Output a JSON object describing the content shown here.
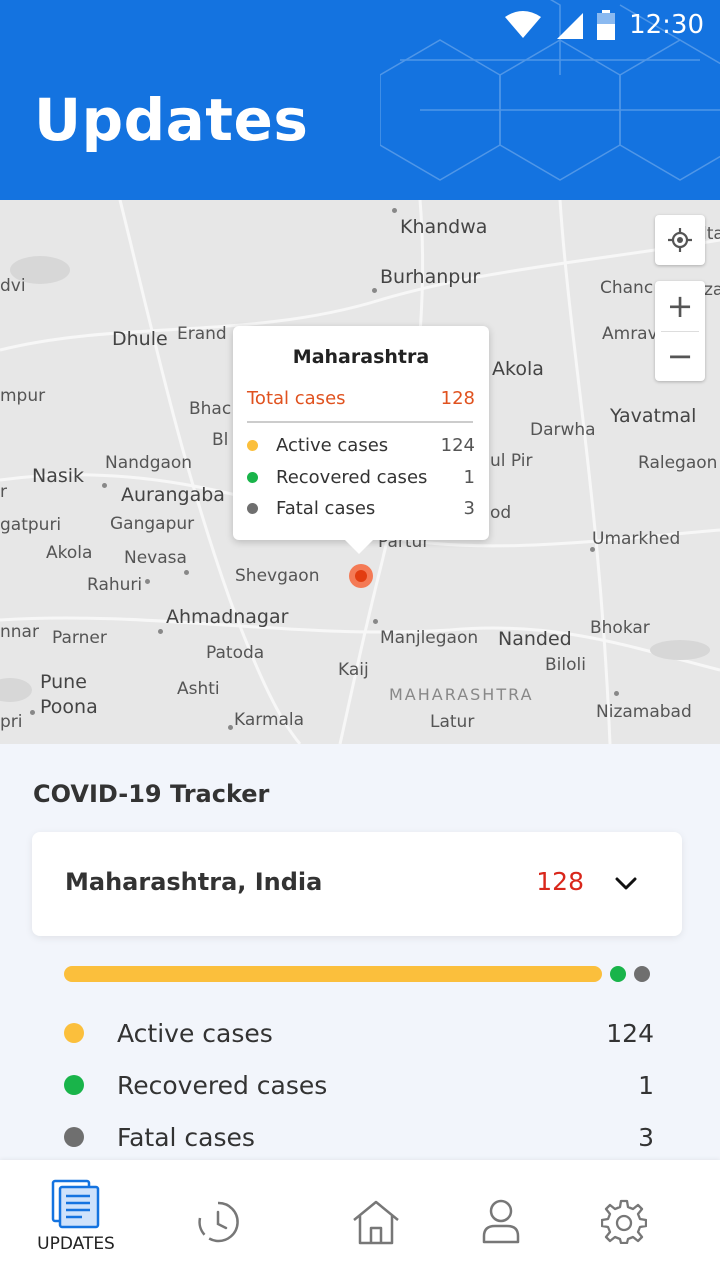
{
  "status_bar": {
    "time": "12:30",
    "icons": [
      "wifi-icon",
      "signal-icon",
      "battery-icon"
    ]
  },
  "header": {
    "title": "Updates",
    "background": "#1473e0"
  },
  "map": {
    "places": [
      "Khandwa",
      "Burhanpur",
      "dvi",
      "Chanc",
      "Dhule",
      "Erand",
      "Amrav",
      "Akola",
      "mpur",
      "Bhac",
      "Bl",
      "Yavatmal",
      "Darwha",
      "ul Pir",
      "Ralegaon",
      "Nasik",
      "Nandgaon",
      "Aurangaba",
      "r",
      "gatpuri",
      "Gangapur",
      "od",
      "Umarkhed",
      "Akola",
      "Nevasa",
      "Rahuri",
      "Shevgaon",
      "Ahmadnagar",
      "nnar",
      "Parner",
      "Manjlegaon",
      "Nanded",
      "Bhokar",
      "Patoda",
      "Biloli",
      "Kaij",
      "Pune",
      "Ashti",
      "MAHARASHTRA",
      "Poona",
      "pri",
      "Karmala",
      "Nizamabad",
      "Latur",
      "Partur",
      "lta",
      "za"
    ],
    "tooltip": {
      "title": "Maharashtra",
      "total_label": "Total cases",
      "total_value": "128",
      "rows": [
        {
          "label": "Active cases",
          "value": "124",
          "color": "#fbbf3c"
        },
        {
          "label": "Recovered cases",
          "value": "1",
          "color": "#19b44a"
        },
        {
          "label": "Fatal cases",
          "value": "3",
          "color": "#6f6f6f"
        }
      ]
    },
    "controls": {
      "zoom_in": "+",
      "zoom_out": "−"
    }
  },
  "tracker": {
    "title": "COVID-19 Tracker",
    "region": "Maharashtra, India",
    "region_total": "128",
    "breakdown": [
      {
        "label": "Active cases",
        "value": "124",
        "count": 124,
        "color": "#fbbf3c"
      },
      {
        "label": "Recovered cases",
        "value": "1",
        "count": 1,
        "color": "#19b44a"
      },
      {
        "label": "Fatal cases",
        "value": "3",
        "count": 3,
        "color": "#6f6f6f"
      }
    ]
  },
  "bottom_nav": {
    "items": [
      {
        "label": "UPDATES",
        "icon": "updates-icon",
        "active": true
      },
      {
        "label": "",
        "icon": "history-icon",
        "active": false
      },
      {
        "label": "",
        "icon": "home-icon",
        "active": false
      },
      {
        "label": "",
        "icon": "profile-icon",
        "active": false
      },
      {
        "label": "",
        "icon": "settings-icon",
        "active": false
      }
    ],
    "active_color": "#1473e0"
  }
}
